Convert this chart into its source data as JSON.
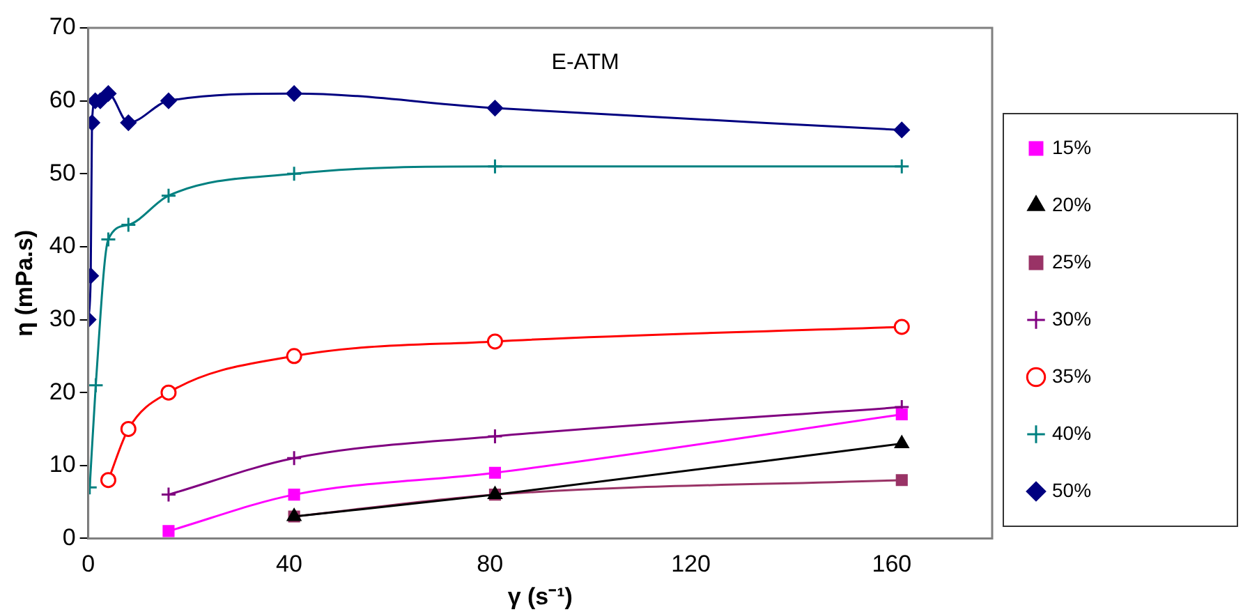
{
  "chart_data": {
    "type": "line",
    "title": "E-ATM",
    "xlabel": "γ (s⁻¹)",
    "ylabel": "η (mPa.s)",
    "xlim": [
      0,
      180
    ],
    "xticks": [
      0,
      40,
      80,
      120,
      160
    ],
    "ylim": [
      0,
      70
    ],
    "yticks": [
      0,
      10,
      20,
      30,
      40,
      50,
      60,
      70
    ],
    "grid": false,
    "legend": "right",
    "series": [
      {
        "name": "15%",
        "color": "#ff00ff",
        "marker": "square",
        "x": [
          16,
          41,
          81,
          162
        ],
        "values": [
          1,
          6,
          9,
          17
        ]
      },
      {
        "name": "20%",
        "color": "#000000",
        "marker": "triangle",
        "x": [
          41,
          81,
          162
        ],
        "values": [
          3,
          6,
          13
        ]
      },
      {
        "name": "25%",
        "color": "#993366",
        "marker": "square",
        "x": [
          41,
          81,
          162
        ],
        "values": [
          3,
          6,
          8
        ]
      },
      {
        "name": "30%",
        "color": "#800080",
        "marker": "cross",
        "x": [
          16,
          41,
          81,
          162
        ],
        "values": [
          6,
          11,
          14,
          18
        ]
      },
      {
        "name": "35%",
        "color": "#ff0000",
        "marker": "circle",
        "x": [
          4,
          8,
          16,
          41,
          81,
          162
        ],
        "values": [
          8,
          15,
          20,
          25,
          27,
          29
        ]
      },
      {
        "name": "40%",
        "color": "#008080",
        "marker": "cross",
        "x": [
          0.3,
          1.5,
          4,
          8,
          16,
          41,
          81,
          162
        ],
        "values": [
          7,
          21,
          41,
          43,
          47,
          50,
          51,
          51
        ]
      },
      {
        "name": "50%",
        "color": "#000080",
        "marker": "diamond",
        "x": [
          0,
          0.5,
          0.75,
          1.4,
          2.4,
          4,
          8,
          16,
          41,
          81,
          162
        ],
        "values": [
          30,
          36,
          57,
          60,
          60,
          61,
          57,
          60,
          61,
          59,
          56
        ]
      }
    ]
  }
}
